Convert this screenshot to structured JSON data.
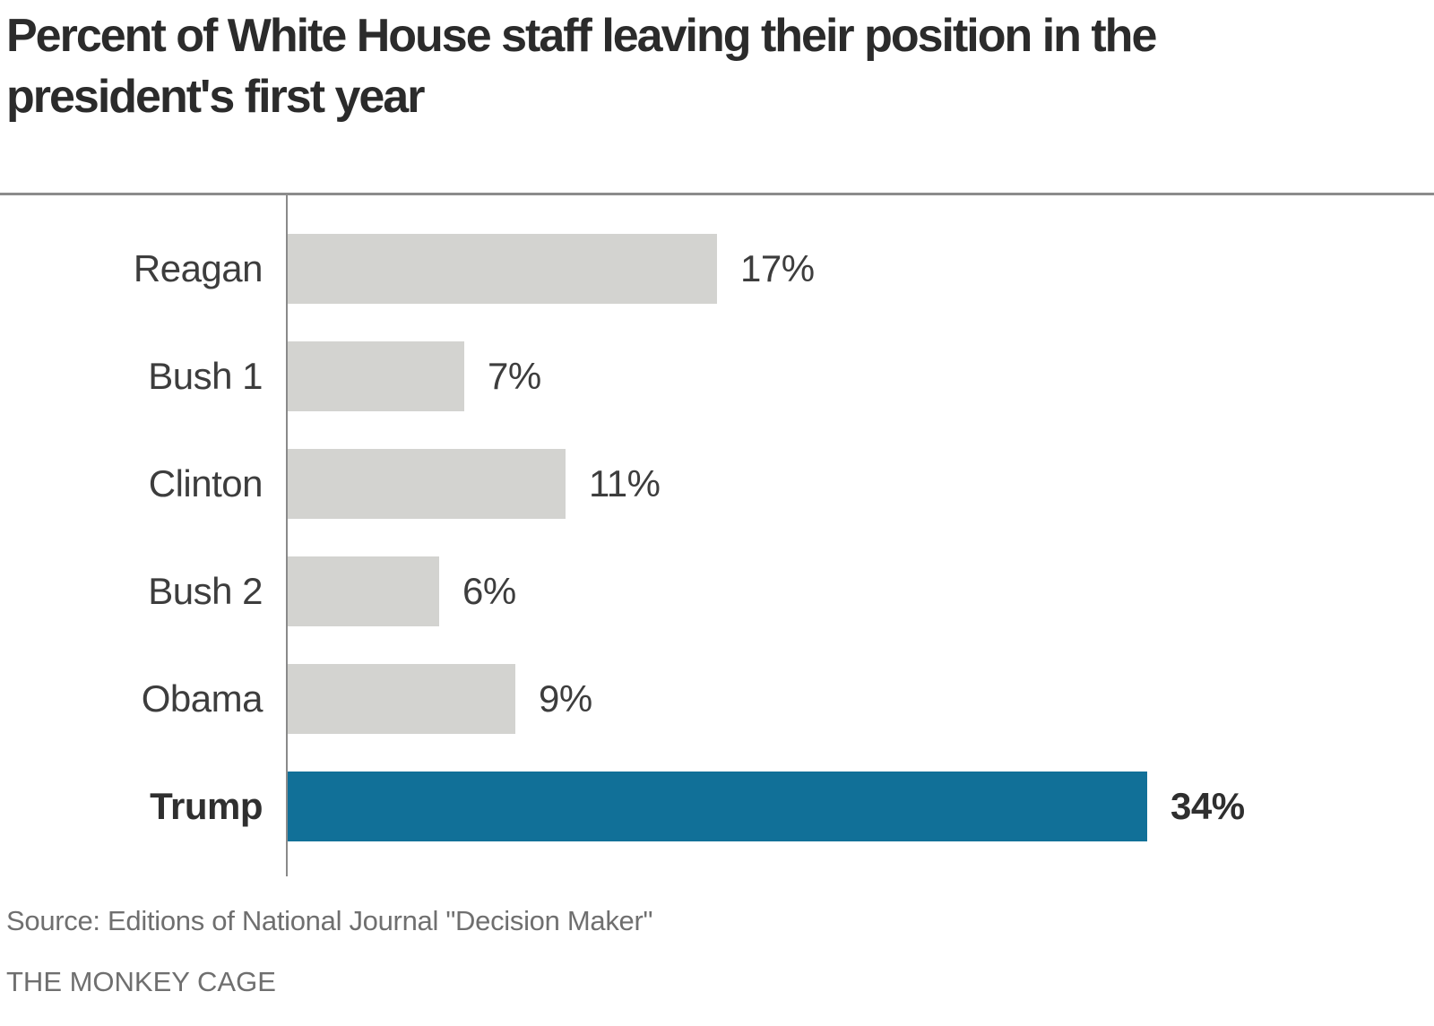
{
  "title_lines": [
    "Percent of White House staff leaving their position in the",
    "president's first year"
  ],
  "footer": {
    "source": "Source: Editions of National Journal \"Decision Maker\"",
    "credit": "THE MONKEY CAGE"
  },
  "chart_data": {
    "type": "bar",
    "orientation": "horizontal",
    "title": "Percent of White House staff leaving their position in the president's first year",
    "categories": [
      "Reagan",
      "Bush 1",
      "Clinton",
      "Bush 2",
      "Obama",
      "Trump"
    ],
    "values": [
      17,
      7,
      11,
      6,
      9,
      34
    ],
    "value_labels": [
      "17%",
      "7%",
      "11%",
      "6%",
      "9%",
      "34%"
    ],
    "highlight_category": "Trump",
    "xlabel": "",
    "ylabel": "",
    "xlim": [
      0,
      35
    ],
    "grid": false,
    "legend": false,
    "colors": {
      "bar_default": "#d3d3d0",
      "bar_highlight": "#117098",
      "axis_line": "#8a8a8a",
      "top_rule": "#8c8c8c",
      "title_text": "#2b2b2b",
      "label_text": "#3d3d3d",
      "footer_text": "#6f6f6f"
    }
  }
}
